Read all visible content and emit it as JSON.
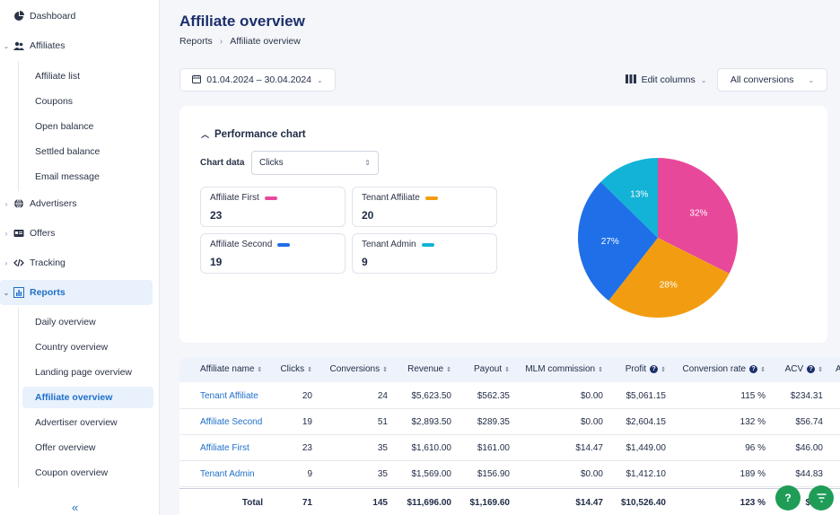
{
  "sidebar": {
    "top": [
      {
        "label": "Dashboard",
        "icon": "pie-chart-icon"
      },
      {
        "label": "Affiliates",
        "icon": "users-icon"
      }
    ],
    "affiliates_sub": [
      "Affiliate list",
      "Coupons",
      "Open balance",
      "Settled balance",
      "Email message"
    ],
    "mid": [
      {
        "label": "Advertisers",
        "icon": "globe-icon"
      },
      {
        "label": "Offers",
        "icon": "offer-card-icon"
      },
      {
        "label": "Tracking",
        "icon": "code-icon"
      },
      {
        "label": "Reports",
        "icon": "report-chart-icon"
      }
    ],
    "reports_sub": [
      "Daily overview",
      "Country overview",
      "Landing page overview",
      "Affiliate overview",
      "Advertiser overview",
      "Offer overview",
      "Coupon overview"
    ],
    "collapse_label": "«"
  },
  "header": {
    "title": "Affiliate overview",
    "breadcrumb": [
      "Reports",
      "Affiliate overview"
    ]
  },
  "toolbar": {
    "date_range": "01.04.2024 – 30.04.2024",
    "edit_columns": "Edit columns",
    "conversions_filter": "All conversions"
  },
  "chart_card": {
    "title": "Performance chart",
    "chart_data_label": "Chart data",
    "select_value": "Clicks",
    "stats": [
      {
        "name": "Affiliate First",
        "value": "23",
        "color": "#e8489a"
      },
      {
        "name": "Tenant Affiliate",
        "value": "20",
        "color": "#f29d11"
      },
      {
        "name": "Affiliate Second",
        "value": "19",
        "color": "#1f6fe8"
      },
      {
        "name": "Tenant Admin",
        "value": "9",
        "color": "#12b3d6"
      }
    ]
  },
  "chart_data": {
    "type": "pie",
    "slices": [
      {
        "name": "Affiliate First",
        "value": 23,
        "label": "32%",
        "color": "#e8489a"
      },
      {
        "name": "Tenant Affiliate",
        "value": 20,
        "label": "28%",
        "color": "#f29d11"
      },
      {
        "name": "Affiliate Second",
        "value": 19,
        "label": "27%",
        "color": "#1f6fe8"
      },
      {
        "name": "Tenant Admin",
        "value": 9,
        "label": "13%",
        "color": "#12b3d6"
      }
    ]
  },
  "table": {
    "columns": [
      "Affiliate name",
      "Clicks",
      "Conversions",
      "Revenue",
      "Payout",
      "MLM commission",
      "Profit",
      "Conversion rate",
      "ACV",
      "A"
    ],
    "rows": [
      [
        "Tenant Affiliate",
        "20",
        "24",
        "$5,623.50",
        "$562.35",
        "$0.00",
        "$5,061.15",
        "115 %",
        "$234.31"
      ],
      [
        "Affiliate Second",
        "19",
        "51",
        "$2,893.50",
        "$289.35",
        "$0.00",
        "$2,604.15",
        "132 %",
        "$56.74"
      ],
      [
        "Affiliate First",
        "23",
        "35",
        "$1,610.00",
        "$161.00",
        "$14.47",
        "$1,449.00",
        "96 %",
        "$46.00"
      ],
      [
        "Tenant Admin",
        "9",
        "35",
        "$1,569.00",
        "$156.90",
        "$0.00",
        "$1,412.10",
        "189 %",
        "$44.83"
      ]
    ],
    "totals": [
      "Total",
      "71",
      "145",
      "$11,696.00",
      "$1,169.60",
      "$14.47",
      "$10,526.40",
      "123 %",
      "$80."
    ]
  },
  "fabs": {
    "help": "?",
    "filter": "filter-icon"
  }
}
